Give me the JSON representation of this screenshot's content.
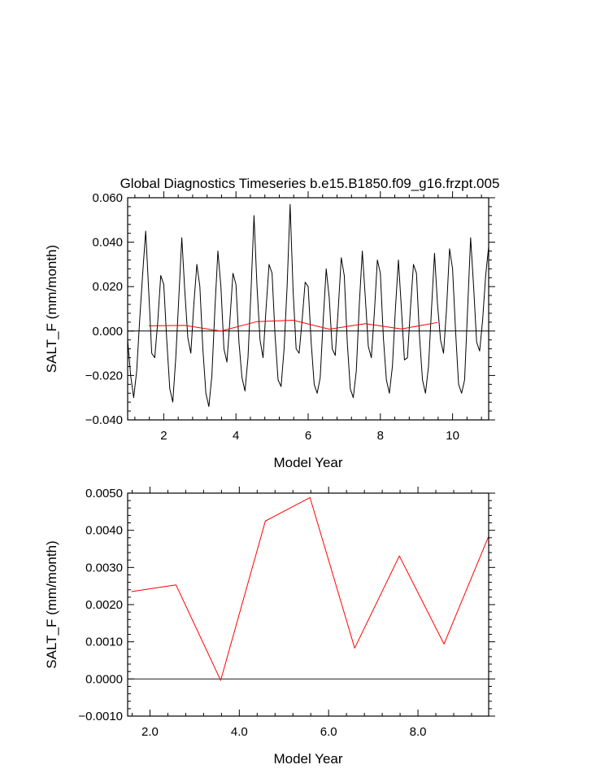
{
  "chart_data": [
    {
      "type": "line",
      "title": "Global Diagnostics Timeseries b.e15.B1850.f09_g16.frzpt.005",
      "xlabel": "Model Year",
      "ylabel": "SALT_F (mm/month)",
      "xlim": [
        1.0,
        11.0
      ],
      "ylim": [
        -0.04,
        0.06
      ],
      "xticks": [
        2,
        4,
        6,
        8,
        10
      ],
      "xtick_labels": [
        "2",
        "4",
        "6",
        "8",
        "10"
      ],
      "yticks": [
        -0.04,
        -0.02,
        0.0,
        0.02,
        0.04,
        0.06
      ],
      "ytick_labels": [
        "−0.040",
        "−0.020",
        "0.000",
        "0.020",
        "0.040",
        "0.060"
      ],
      "zero_line": true,
      "series": [
        {
          "color": "#000000",
          "x": [
            1.0,
            1.083,
            1.167,
            1.25,
            1.333,
            1.417,
            1.5,
            1.583,
            1.667,
            1.75,
            1.833,
            1.917,
            2.0,
            2.083,
            2.167,
            2.25,
            2.333,
            2.417,
            2.5,
            2.583,
            2.667,
            2.75,
            2.833,
            2.917,
            3.0,
            3.083,
            3.167,
            3.25,
            3.333,
            3.417,
            3.5,
            3.583,
            3.667,
            3.75,
            3.833,
            3.917,
            4.0,
            4.083,
            4.167,
            4.25,
            4.333,
            4.417,
            4.5,
            4.583,
            4.667,
            4.75,
            4.833,
            4.917,
            5.0,
            5.083,
            5.167,
            5.25,
            5.333,
            5.417,
            5.5,
            5.583,
            5.667,
            5.75,
            5.833,
            5.917,
            6.0,
            6.083,
            6.167,
            6.25,
            6.333,
            6.417,
            6.5,
            6.583,
            6.667,
            6.75,
            6.833,
            6.917,
            7.0,
            7.083,
            7.167,
            7.25,
            7.333,
            7.417,
            7.5,
            7.583,
            7.667,
            7.75,
            7.833,
            7.917,
            8.0,
            8.083,
            8.167,
            8.25,
            8.333,
            8.417,
            8.5,
            8.583,
            8.667,
            8.75,
            8.833,
            8.917,
            9.0,
            9.083,
            9.167,
            9.25,
            9.333,
            9.417,
            9.5,
            9.583,
            9.667,
            9.75,
            9.833,
            9.917,
            10.0,
            10.083,
            10.167,
            10.25,
            10.333,
            10.417,
            10.5,
            10.583,
            10.667,
            10.75,
            10.833,
            10.917,
            11.0
          ],
          "y": [
            -0.004,
            -0.02,
            -0.03,
            -0.018,
            0.005,
            0.026,
            0.045,
            0.018,
            -0.01,
            -0.012,
            0.004,
            0.025,
            0.021,
            -0.004,
            -0.026,
            -0.032,
            -0.012,
            0.015,
            0.042,
            0.018,
            -0.003,
            -0.01,
            0.012,
            0.03,
            0.02,
            -0.008,
            -0.028,
            -0.034,
            -0.02,
            0.01,
            0.036,
            0.02,
            -0.008,
            -0.014,
            0.005,
            0.026,
            0.021,
            -0.005,
            -0.021,
            -0.027,
            -0.012,
            0.018,
            0.052,
            0.02,
            -0.004,
            -0.012,
            0.01,
            0.03,
            0.026,
            -0.002,
            -0.022,
            -0.025,
            -0.008,
            0.02,
            0.057,
            0.018,
            -0.008,
            -0.01,
            0.005,
            0.022,
            0.02,
            -0.005,
            -0.024,
            -0.028,
            -0.021,
            0.005,
            0.028,
            0.015,
            -0.008,
            -0.011,
            0.01,
            0.033,
            0.025,
            -0.005,
            -0.026,
            -0.03,
            -0.018,
            0.012,
            0.036,
            0.015,
            -0.007,
            -0.012,
            0.008,
            0.032,
            0.026,
            -0.003,
            -0.022,
            -0.028,
            -0.016,
            0.01,
            0.032,
            0.01,
            -0.013,
            -0.012,
            0.01,
            0.03,
            0.026,
            -0.002,
            -0.022,
            -0.028,
            -0.016,
            0.01,
            0.035,
            0.012,
            -0.004,
            -0.01,
            0.01,
            0.037,
            0.028,
            0.0,
            -0.024,
            -0.028,
            -0.022,
            0.01,
            0.042,
            0.02,
            -0.005,
            -0.009,
            0.005,
            0.025,
            0.038
          ]
        },
        {
          "color": "#ff0000",
          "x": [
            1.583,
            2.583,
            3.583,
            4.583,
            5.583,
            6.583,
            7.583,
            8.583,
            9.583
          ],
          "y": [
            0.00235,
            0.00253,
            -4e-05,
            0.00425,
            0.00488,
            0.00083,
            0.00331,
            0.00094,
            0.00384
          ]
        }
      ]
    },
    {
      "type": "line",
      "xlabel": "Model Year",
      "ylabel": "SALT_F (mm/month)",
      "xlim": [
        1.5,
        9.583
      ],
      "ylim": [
        -0.001,
        0.005
      ],
      "xticks": [
        2,
        4,
        6,
        8
      ],
      "xtick_labels": [
        "2.0",
        "4.0",
        "6.0",
        "8.0"
      ],
      "yticks": [
        -0.001,
        0.0,
        0.001,
        0.002,
        0.003,
        0.004,
        0.005
      ],
      "ytick_labels": [
        "−0.0010",
        "0.0000",
        "0.0010",
        "0.0020",
        "0.0030",
        "0.0040",
        "0.0050"
      ],
      "zero_line": true,
      "series": [
        {
          "color": "#ff0000",
          "x": [
            1.583,
            2.583,
            3.583,
            4.583,
            5.583,
            6.583,
            7.583,
            8.583,
            9.583
          ],
          "y": [
            0.00235,
            0.00253,
            -4e-05,
            0.00425,
            0.00488,
            0.00083,
            0.00331,
            0.00094,
            0.00384
          ]
        }
      ]
    }
  ]
}
